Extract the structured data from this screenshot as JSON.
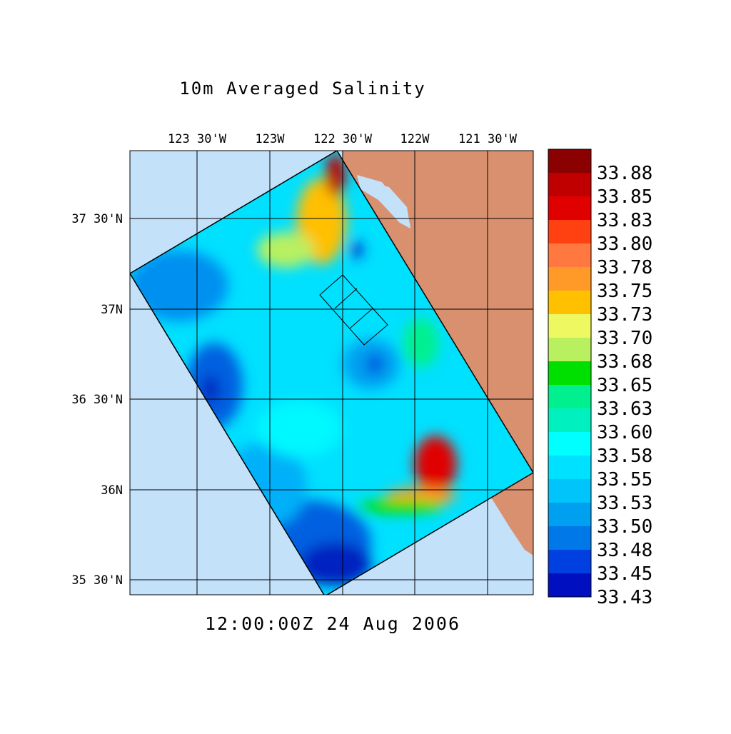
{
  "title": "10m Averaged Salinity",
  "timestamp": "12:00:00Z  24 Aug 2006",
  "longitude_labels": [
    "123 30'W",
    "123W",
    "122 30'W",
    "122W",
    "121 30'W"
  ],
  "latitude_labels": [
    "37 30'N",
    "37N",
    "36 30'N",
    "36N",
    "35 30'N"
  ],
  "colorbar": {
    "labels": [
      "33.88",
      "33.85",
      "33.83",
      "33.80",
      "33.78",
      "33.75",
      "33.73",
      "33.70",
      "33.68",
      "33.65",
      "33.63",
      "33.60",
      "33.58",
      "33.55",
      "33.53",
      "33.50",
      "33.48",
      "33.45",
      "33.43"
    ],
    "colors": [
      "#8b0000",
      "#c00000",
      "#e00000",
      "#ff4010",
      "#ff7840",
      "#ff9a28",
      "#ffc000",
      "#eef860",
      "#b8f060",
      "#00e000",
      "#00f090",
      "#00f0c0",
      "#00ffff",
      "#00e0ff",
      "#00c4fa",
      "#00a0f0",
      "#0078e8",
      "#0040e0",
      "#0010c0"
    ]
  }
}
